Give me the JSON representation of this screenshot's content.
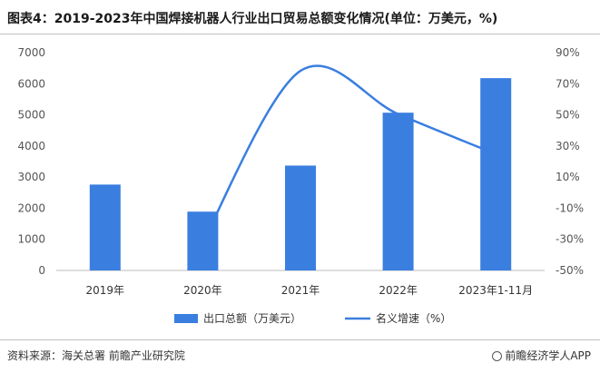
{
  "title": "图表4：2019-2023年中国焊接机器人行业出口贸易总额变化情况(单位：万美元，%)",
  "footer": {
    "source": "资料来源：海关总署 前瞻产业研究院",
    "brand": "前瞻经济学人APP"
  },
  "colors": {
    "bar": "#3a7ee0",
    "line": "#3a7ee0"
  },
  "chart_data": {
    "type": "bar",
    "categories": [
      "2019年",
      "2020年",
      "2021年",
      "2022年",
      "2023年1-11月"
    ],
    "series": [
      {
        "name": "出口总额（万美元）",
        "type": "bar",
        "axis": "left",
        "values": [
          2760,
          1890,
          3370,
          5070,
          6180
        ]
      },
      {
        "name": "名义增速（%）",
        "type": "line",
        "axis": "right",
        "values": [
          null,
          -31.5,
          78.3,
          50.5,
          24.8
        ]
      }
    ],
    "y_left": {
      "min": 0,
      "max": 7000,
      "ticks": [
        "0",
        "1000",
        "2000",
        "3000",
        "4000",
        "5000",
        "6000",
        "7000"
      ]
    },
    "y_right": {
      "min": -50,
      "max": 90,
      "ticks": [
        "-50%",
        "-30%",
        "-10%",
        "10%",
        "30%",
        "50%",
        "70%",
        "90%"
      ]
    },
    "legend_position": "bottom",
    "grid": false
  }
}
